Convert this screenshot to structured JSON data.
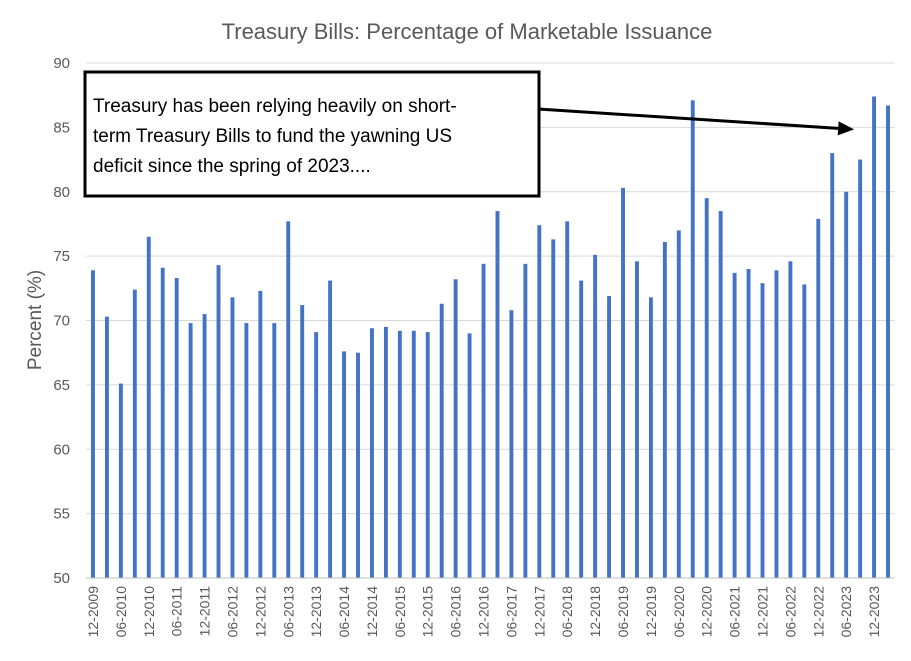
{
  "chart_data": {
    "type": "bar",
    "title": "Treasury Bills: Percentage of Marketable Issuance",
    "xlabel": "",
    "ylabel": "Percent (%)",
    "ylim": [
      50,
      90
    ],
    "yticks": [
      50,
      55,
      60,
      65,
      70,
      75,
      80,
      85,
      90
    ],
    "grid": true,
    "legend": "none",
    "bar_color": "#4472c4",
    "categories": [
      "12-2009",
      "03-2010",
      "06-2010",
      "09-2010",
      "12-2010",
      "03-2011",
      "06-2011",
      "09-2011",
      "12-2011",
      "03-2012",
      "06-2012",
      "09-2012",
      "12-2012",
      "03-2013",
      "06-2013",
      "09-2013",
      "12-2013",
      "03-2014",
      "06-2014",
      "09-2014",
      "12-2014",
      "03-2015",
      "06-2015",
      "09-2015",
      "12-2015",
      "03-2016",
      "06-2016",
      "09-2016",
      "12-2016",
      "03-2017",
      "06-2017",
      "09-2017",
      "12-2017",
      "03-2018",
      "06-2018",
      "09-2018",
      "12-2018",
      "03-2019",
      "06-2019",
      "09-2019",
      "12-2019",
      "03-2020",
      "06-2020",
      "09-2020",
      "12-2020",
      "03-2021",
      "06-2021",
      "09-2021",
      "12-2021",
      "03-2022",
      "06-2022",
      "09-2022",
      "12-2022",
      "03-2023",
      "06-2023",
      "09-2023",
      "12-2023",
      "03-2024"
    ],
    "tick_labels": [
      "12-2009",
      "06-2010",
      "12-2010",
      "06-2011",
      "12-2011",
      "06-2012",
      "12-2012",
      "06-2013",
      "12-2013",
      "06-2014",
      "12-2014",
      "06-2015",
      "12-2015",
      "06-2016",
      "12-2016",
      "06-2017",
      "12-2017",
      "06-2018",
      "12-2018",
      "06-2019",
      "12-2019",
      "06-2020",
      "12-2020",
      "06-2021",
      "12-2021",
      "06-2022",
      "12-2022",
      "06-2023",
      "12-2023"
    ],
    "values": [
      73.9,
      70.3,
      65.1,
      72.4,
      76.5,
      74.1,
      73.3,
      69.8,
      70.5,
      74.3,
      71.8,
      69.8,
      72.3,
      69.8,
      77.7,
      71.2,
      69.1,
      73.1,
      67.6,
      67.5,
      69.4,
      69.5,
      69.2,
      69.2,
      69.1,
      71.3,
      73.2,
      69.0,
      74.4,
      78.5,
      70.8,
      74.4,
      77.4,
      76.3,
      77.7,
      73.1,
      75.1,
      71.9,
      80.3,
      74.6,
      71.8,
      76.1,
      77.0,
      87.1,
      79.5,
      78.5,
      73.7,
      74.0,
      72.9,
      73.9,
      74.6,
      72.8,
      77.9,
      83.0,
      80.0,
      82.5,
      87.4,
      86.7
    ],
    "annotation": {
      "text_lines": [
        "Treasury has been relying heavily on short-",
        "term Treasury Bills to fund the yawning US",
        "deficit since the spring of 2023...."
      ],
      "arrow_to_category": "09-2023",
      "arrow_to_value": 85
    }
  }
}
